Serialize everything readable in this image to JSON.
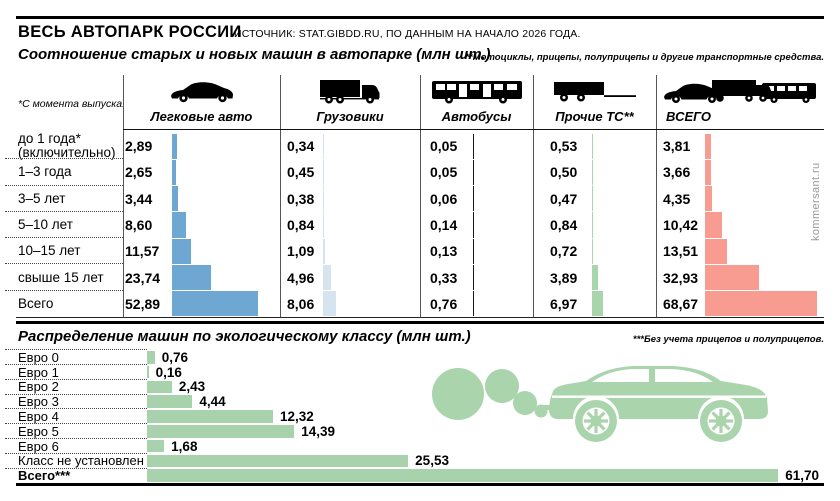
{
  "header": {
    "title": "ВЕСЬ АВТОПАРК РОССИИ",
    "source": "ИСТОЧНИК: STAT.GIBDD.RU, ПО ДАННЫМ НА НАЧАЛО 2026 ГОДА.",
    "watermark": "kommersant.ru"
  },
  "age_section": {
    "footnote": "**Мотоциклы, прицепы, полуприцепы и другие транспортные средства.",
    "age_note": "*С момента выпуска."
  },
  "eco_section": {
    "footnote": "***Без учета прицепов и полуприцепов."
  },
  "illustration": {
    "name": "polluting-car-with-exhaust-smoke",
    "color": "#A9D4AC"
  },
  "chart_data": [
    {
      "type": "bar",
      "orientation": "horizontal",
      "title": "Соотношение старых и новых машин в автопарке (млн шт.)",
      "unit": "млн шт.",
      "categories": [
        "до 1 года*\n(включительно)",
        "1–3 года",
        "3–5 лет",
        "5–10 лет",
        "10–15 лет",
        "свыше 15 лет",
        "Всего"
      ],
      "series": [
        {
          "name": "Легковые авто",
          "icon": "car-icon",
          "color": "#6FA7D3",
          "values": [
            2.89,
            2.65,
            3.44,
            8.6,
            11.57,
            23.74,
            52.89
          ],
          "labels": [
            "2,89",
            "2,65",
            "3,44",
            "8,60",
            "11,57",
            "23,74",
            "52,89"
          ]
        },
        {
          "name": "Грузовики",
          "icon": "truck-icon",
          "color": "#D6E4F0",
          "values": [
            0.34,
            0.45,
            0.38,
            0.84,
            1.09,
            4.96,
            8.06
          ],
          "labels": [
            "0,34",
            "0,45",
            "0,38",
            "0,84",
            "1,09",
            "4,96",
            "8,06"
          ]
        },
        {
          "name": "Автобусы",
          "icon": "bus-icon",
          "color": "#1A1A1A",
          "values": [
            0.05,
            0.05,
            0.06,
            0.14,
            0.13,
            0.33,
            0.76
          ],
          "labels": [
            "0,05",
            "0,05",
            "0,06",
            "0,14",
            "0,13",
            "0,33",
            "0,76"
          ]
        },
        {
          "name": "Прочие ТС**",
          "icon": "trailer-icon",
          "color": "#A8D5AC",
          "values": [
            0.53,
            0.5,
            0.47,
            0.84,
            0.72,
            3.89,
            6.97
          ],
          "labels": [
            "0,53",
            "0,50",
            "0,47",
            "0,84",
            "0,72",
            "3,89",
            "6,97"
          ]
        },
        {
          "name": "ВСЕГО",
          "icon": "all-vehicles-icon",
          "color": "#F89B91",
          "values": [
            3.81,
            3.66,
            4.35,
            10.42,
            13.51,
            32.93,
            68.67
          ],
          "labels": [
            "3,81",
            "3,66",
            "4,35",
            "10,42",
            "13,51",
            "32,93",
            "68,67"
          ]
        }
      ]
    },
    {
      "type": "bar",
      "orientation": "horizontal",
      "title": "Распределение машин по экологическому классу (млн шт.)",
      "unit": "млн шт.",
      "color": "#A8D2AC",
      "categories": [
        "Евро 0",
        "Евро 1",
        "Евро 2",
        "Евро 3",
        "Евро 4",
        "Евро 5",
        "Евро 6",
        "Класс не установлен",
        "Всего***"
      ],
      "values": [
        0.76,
        0.16,
        2.43,
        4.44,
        12.32,
        14.39,
        1.68,
        25.53,
        61.7
      ],
      "labels": [
        "0,76",
        "0,16",
        "2,43",
        "4,44",
        "12,32",
        "14,39",
        "1,68",
        "25,53",
        "61,70"
      ]
    }
  ]
}
